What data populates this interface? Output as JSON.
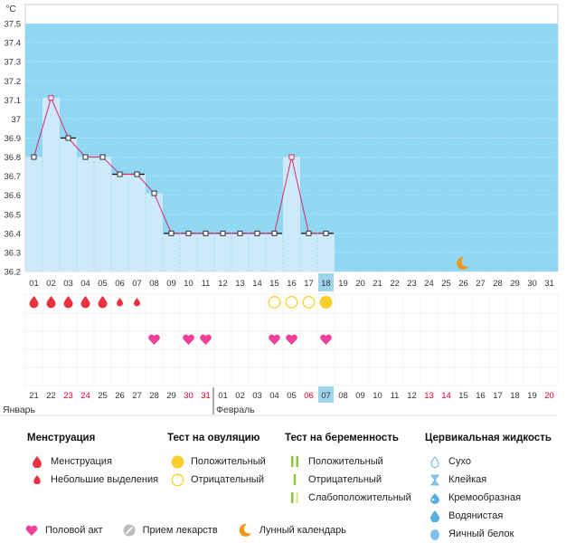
{
  "chart_data": {
    "type": "line",
    "unit_label": "°C",
    "y_ticks": [
      "37.5",
      "37.4",
      "37.3",
      "37.2",
      "37.1",
      "37",
      "36.9",
      "36.8",
      "36.7",
      "36.6",
      "36.5",
      "36.4",
      "36.3",
      "36.2"
    ],
    "ylim": [
      36.2,
      37.6
    ],
    "cycle_days": [
      "01",
      "02",
      "03",
      "04",
      "05",
      "06",
      "07",
      "08",
      "09",
      "10",
      "11",
      "12",
      "13",
      "14",
      "15",
      "16",
      "17",
      "18",
      "19",
      "20",
      "21",
      "22",
      "23",
      "24",
      "25",
      "26",
      "27",
      "28",
      "29",
      "30",
      "31"
    ],
    "temperatures": [
      36.8,
      37.11,
      36.9,
      36.8,
      36.8,
      36.71,
      36.71,
      36.61,
      36.4,
      36.4,
      36.4,
      36.4,
      36.4,
      36.4,
      36.4,
      36.8,
      36.4,
      36.4
    ],
    "coverline_days": [
      3,
      6,
      7,
      9,
      10,
      11,
      12,
      13,
      14,
      15,
      17,
      18
    ],
    "current_day_index": 17,
    "moon_day_index": 25,
    "menstruation": [
      "full",
      "full",
      "full",
      "full",
      "full",
      "light",
      "light",
      "",
      "",
      "",
      "",
      "",
      "",
      "",
      "",
      "",
      "",
      ""
    ],
    "ovulation_tests": [
      "",
      "",
      "",
      "",
      "",
      "",
      "",
      "",
      "",
      "",
      "",
      "",
      "",
      "",
      "negative",
      "negative",
      "negative",
      "positive"
    ],
    "intercourse": [
      false,
      false,
      false,
      false,
      false,
      false,
      false,
      true,
      false,
      true,
      true,
      false,
      false,
      false,
      true,
      true,
      false,
      true
    ],
    "calendar_dates": [
      "21",
      "22",
      "23",
      "24",
      "25",
      "26",
      "27",
      "28",
      "29",
      "30",
      "31",
      "01",
      "02",
      "03",
      "04",
      "05",
      "06",
      "07",
      "08",
      "09",
      "10",
      "11",
      "12",
      "13",
      "14",
      "15",
      "16",
      "17",
      "18",
      "19",
      "20"
    ],
    "weekend_indices": [
      2,
      3,
      9,
      10,
      16,
      23,
      24,
      30
    ],
    "month_labels": [
      {
        "label": "Январь",
        "index": 0
      },
      {
        "label": "Февраль",
        "index": 11
      }
    ]
  },
  "legend": {
    "menstruation": {
      "title": "Менструация",
      "items": [
        "Менструация",
        "Небольшие выделения"
      ]
    },
    "ovulation": {
      "title": "Тест на овуляцию",
      "items": [
        "Положительный",
        "Отрицательный"
      ]
    },
    "pregnancy": {
      "title": "Тест на беременность",
      "items": [
        "Положительный",
        "Отрицательный",
        "Слабоположительный"
      ]
    },
    "cervical": {
      "title": "Цервикальная жидкость",
      "items": [
        "Сухо",
        "Клейкая",
        "Кремообразная",
        "Водянистая",
        "Яичный белок"
      ]
    },
    "other": [
      "Половой акт",
      "Прием лекарств",
      "Лунный календарь"
    ]
  },
  "colors": {
    "sky": "#8fd7f2",
    "bar": "#cdeafa",
    "bar_edge": "#a9d6ef",
    "temp_line": "#e0256e",
    "blood": "#e8323f",
    "heart": "#f0419a",
    "ovulation": "#f8cf2c",
    "highlight": "#9fd5ec",
    "weekend": "#e0002a",
    "moon": "#f0950f",
    "pregnancy_green": "#8dc63f",
    "drop_blue": "#5aaee0"
  }
}
